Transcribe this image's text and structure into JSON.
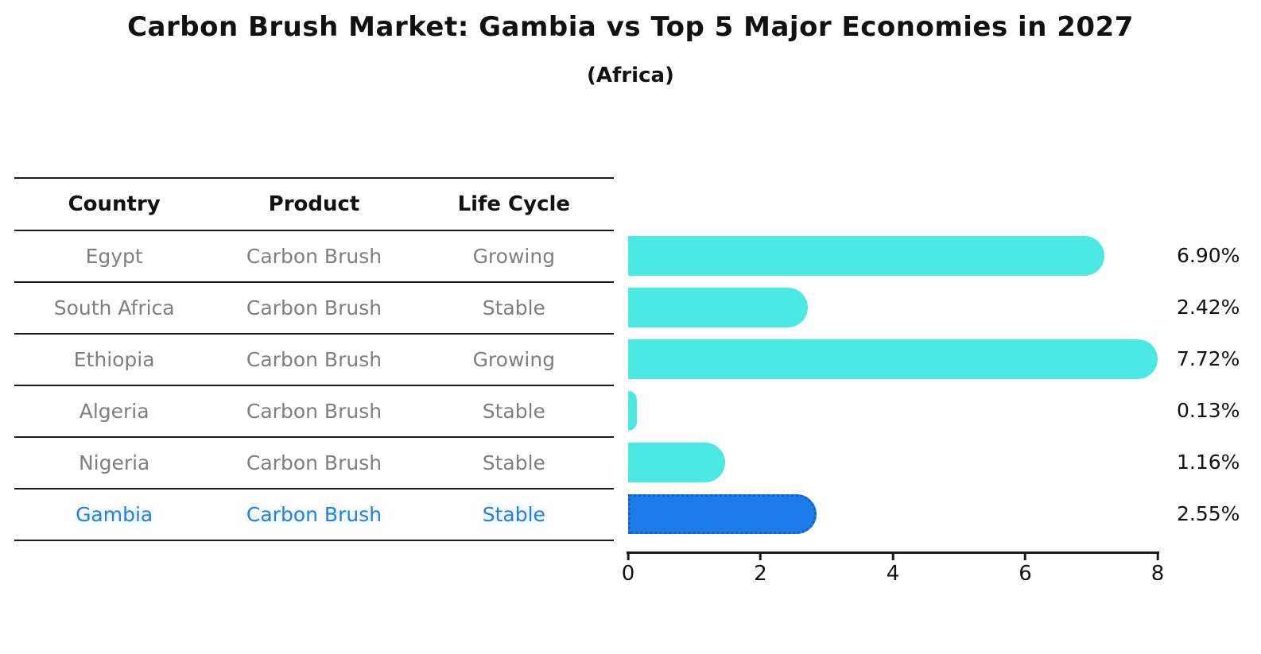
{
  "title": "Carbon Brush Market: Gambia vs Top 5 Major Economies in 2027",
  "subtitle": "(Africa)",
  "table": {
    "headers": [
      "Country",
      "Product",
      "Life Cycle"
    ],
    "rows": [
      {
        "country": "Egypt",
        "product": "Carbon Brush",
        "life_cycle": "Growing",
        "value_label": "6.90%",
        "highlight": false
      },
      {
        "country": "South Africa",
        "product": "Carbon Brush",
        "life_cycle": "Stable",
        "value_label": "2.42%",
        "highlight": false
      },
      {
        "country": "Ethiopia",
        "product": "Carbon Brush",
        "life_cycle": "Growing",
        "value_label": "7.72%",
        "highlight": false
      },
      {
        "country": "Algeria",
        "product": "Carbon Brush",
        "life_cycle": "Stable",
        "value_label": "0.13%",
        "highlight": false
      },
      {
        "country": "Nigeria",
        "product": "Carbon Brush",
        "life_cycle": "Stable",
        "value_label": "1.16%",
        "highlight": false
      },
      {
        "country": "Gambia",
        "product": "Carbon Brush",
        "life_cycle": "Stable",
        "value_label": "2.55%",
        "highlight": true
      }
    ]
  },
  "chart_data": {
    "type": "bar",
    "orientation": "horizontal",
    "title": "Carbon Brush Market: Gambia vs Top 5 Major Economies in 2027",
    "subtitle": "(Africa)",
    "categories": [
      "Egypt",
      "South Africa",
      "Ethiopia",
      "Algeria",
      "Nigeria",
      "Gambia"
    ],
    "values": [
      6.9,
      2.42,
      7.72,
      0.13,
      1.16,
      2.55
    ],
    "value_labels": [
      "6.90%",
      "2.42%",
      "7.72%",
      "0.13%",
      "1.16%",
      "2.55%"
    ],
    "highlighted_category": "Gambia",
    "xlim": [
      0,
      8
    ],
    "x_ticks": [
      "0",
      "2",
      "4",
      "6",
      "8"
    ],
    "grid": false,
    "legend": "none",
    "bar_color_default": "#4be8e4",
    "bar_color_highlight": "#1c7cea",
    "bar_highlight_border": "#1460c8"
  },
  "colors": {
    "background": "#ffffff",
    "table_line": "#1a1a1a",
    "row_text": "#7f7f7f",
    "header_text": "#111111",
    "highlight_text": "#2a80d4",
    "value_text": "#111111"
  }
}
